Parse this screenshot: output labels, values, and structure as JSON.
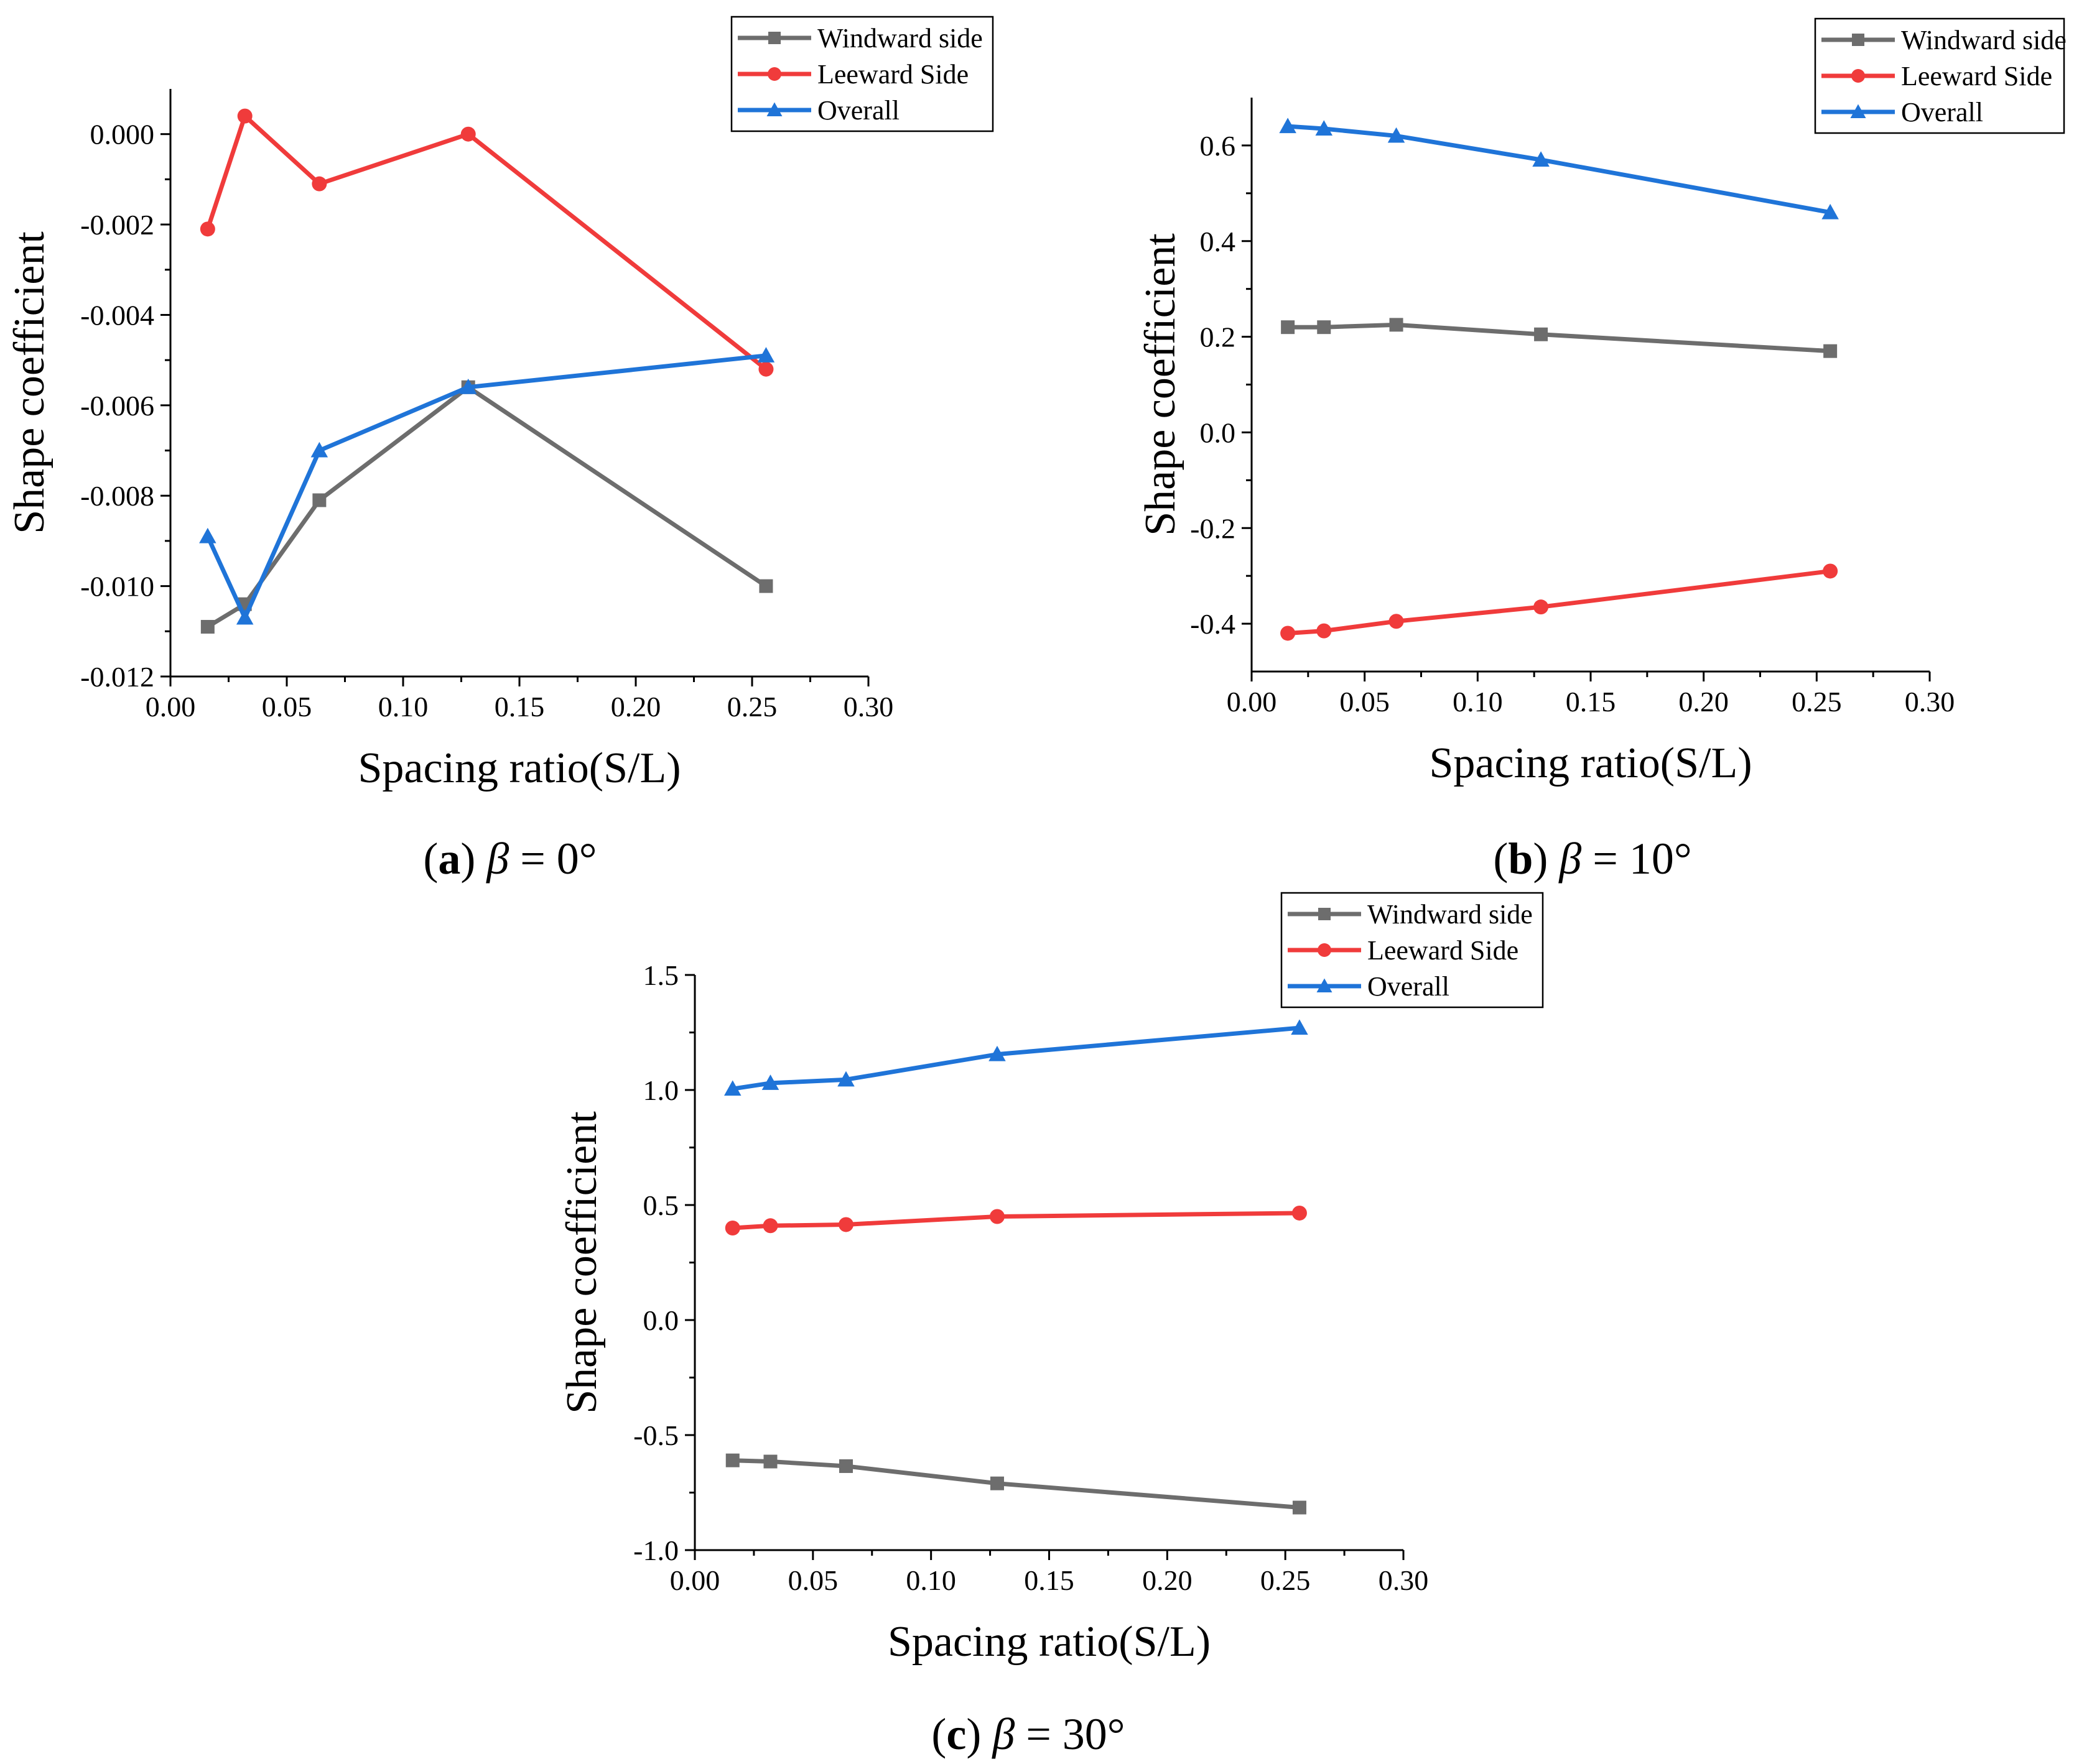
{
  "figure": {
    "colors": {
      "windward": "#6d6d6d",
      "leeward": "#f03b3b",
      "overall": "#1f74d8"
    }
  },
  "chart_data": [
    {
      "id": "a",
      "type": "line",
      "caption": {
        "letter": "a",
        "beta": "β",
        "value": " = 0°"
      },
      "xlabel": "Spacing ratio(S/L)",
      "ylabel": "Shape coefficient",
      "xlim": [
        0.0,
        0.3
      ],
      "ylim": [
        -0.012,
        0.001
      ],
      "xticks": [
        0.0,
        0.05,
        0.1,
        0.15,
        0.2,
        0.25,
        0.3
      ],
      "xtick_labels": [
        "0.00",
        "0.05",
        "0.10",
        "0.15",
        "0.20",
        "0.25",
        "0.30"
      ],
      "yticks": [
        -0.012,
        -0.01,
        -0.008,
        -0.006,
        -0.004,
        -0.002,
        0.0
      ],
      "ytick_labels": [
        "-0.012",
        "-0.010",
        "-0.008",
        "-0.006",
        "-0.004",
        "-0.002",
        "0.000"
      ],
      "x": [
        0.016,
        0.032,
        0.064,
        0.128,
        0.256
      ],
      "series": [
        {
          "name": "Windward side",
          "marker": "square",
          "values": [
            -0.0109,
            -0.0104,
            -0.0081,
            -0.0056,
            -0.01
          ]
        },
        {
          "name": "Leeward Side",
          "marker": "circle",
          "values": [
            -0.0021,
            0.0004,
            -0.0011,
            0.0,
            -0.0052
          ]
        },
        {
          "name": "Overall",
          "marker": "triangle",
          "values": [
            -0.0089,
            -0.0107,
            -0.007,
            -0.0056,
            -0.0049
          ]
        }
      ],
      "legend": "top-right, outside plot"
    },
    {
      "id": "b",
      "type": "line",
      "caption": {
        "letter": "b",
        "beta": "β",
        "value": " = 10°"
      },
      "xlabel": "Spacing ratio(S/L)",
      "ylabel": "Shape coefficient",
      "xlim": [
        0.0,
        0.3
      ],
      "ylim": [
        -0.5,
        0.7
      ],
      "xticks": [
        0.0,
        0.05,
        0.1,
        0.15,
        0.2,
        0.25,
        0.3
      ],
      "xtick_labels": [
        "0.00",
        "0.05",
        "0.10",
        "0.15",
        "0.20",
        "0.25",
        "0.30"
      ],
      "yticks": [
        -0.4,
        -0.2,
        0.0,
        0.2,
        0.4,
        0.6
      ],
      "ytick_labels": [
        "-0.4",
        "-0.2",
        "0.0",
        "0.2",
        "0.4",
        "0.6"
      ],
      "x": [
        0.016,
        0.032,
        0.064,
        0.128,
        0.256
      ],
      "series": [
        {
          "name": "Windward side",
          "marker": "square",
          "values": [
            0.22,
            0.22,
            0.225,
            0.205,
            0.17
          ]
        },
        {
          "name": "Leeward Side",
          "marker": "circle",
          "values": [
            -0.42,
            -0.415,
            -0.395,
            -0.365,
            -0.29
          ]
        },
        {
          "name": "Overall",
          "marker": "triangle",
          "values": [
            0.64,
            0.635,
            0.62,
            0.57,
            0.46
          ]
        }
      ],
      "legend": "top-right, outside plot"
    },
    {
      "id": "c",
      "type": "line",
      "caption": {
        "letter": "c",
        "beta": "β",
        "value": " = 30°"
      },
      "xlabel": "Spacing ratio(S/L)",
      "ylabel": "Shape coefficient",
      "xlim": [
        0.0,
        0.3
      ],
      "ylim": [
        -1.0,
        1.5
      ],
      "xticks": [
        0.0,
        0.05,
        0.1,
        0.15,
        0.2,
        0.25,
        0.3
      ],
      "xtick_labels": [
        "0.00",
        "0.05",
        "0.10",
        "0.15",
        "0.20",
        "0.25",
        "0.30"
      ],
      "yticks": [
        -1.0,
        -0.5,
        0.0,
        0.5,
        1.0,
        1.5
      ],
      "ytick_labels": [
        "-1.0",
        "-0.5",
        "0.0",
        "0.5",
        "1.0",
        "1.5"
      ],
      "x": [
        0.016,
        0.032,
        0.064,
        0.128,
        0.256
      ],
      "series": [
        {
          "name": "Windward side",
          "marker": "square",
          "values": [
            -0.61,
            -0.615,
            -0.635,
            -0.71,
            -0.815
          ]
        },
        {
          "name": "Leeward Side",
          "marker": "circle",
          "values": [
            0.4,
            0.41,
            0.415,
            0.45,
            0.465
          ]
        },
        {
          "name": "Overall",
          "marker": "triangle",
          "values": [
            1.005,
            1.03,
            1.045,
            1.155,
            1.27
          ]
        }
      ],
      "legend": "top-right, outside plot"
    }
  ]
}
